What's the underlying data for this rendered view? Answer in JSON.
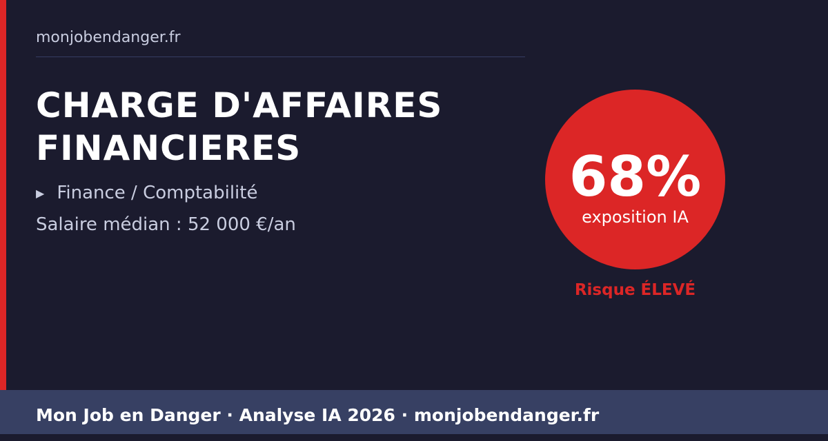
{
  "site": "monjobendanger.fr",
  "title_line1": "CHARGE D'AFFAIRES",
  "title_line2": "FINANCIERES",
  "category_icon": "triangle-right-icon",
  "category": "Finance / Comptabilité",
  "salary": "Salaire médian : 52 000 €/an",
  "exposure": {
    "percent": 68,
    "value_label": "68%",
    "label": "exposition IA"
  },
  "risk": "Risque ÉLEVÉ",
  "footer": "Mon Job en Danger · Analyse IA 2026 · monjobendanger.fr",
  "colors": {
    "accent": "#dc2626",
    "background": "#1b1b2e",
    "footer": "#374063"
  }
}
